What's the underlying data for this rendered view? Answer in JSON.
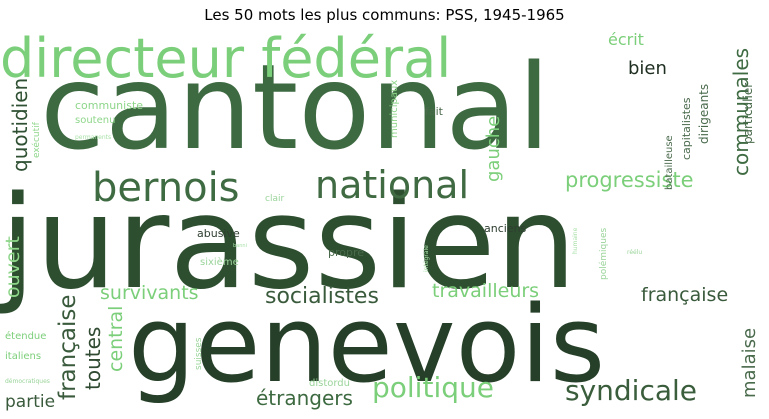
{
  "title": "Les 50 mots les plus communs: PSS, 1945-1965",
  "palette": {
    "dark": "#1f3a22",
    "darkmid": "#2f5a33",
    "mid": "#3f7a45",
    "light": "#7fcf7f",
    "pale": "#a8e0a8"
  },
  "words": [
    {
      "text": "cantonal",
      "color": "#3e6a42"
    },
    {
      "text": "jurassien",
      "color": "#2e4e30"
    },
    {
      "text": "genevois",
      "color": "#263f28"
    },
    {
      "text": "directeur fédéral",
      "color": "#7ccf7a"
    },
    {
      "text": "bernois",
      "color": "#3f6b43"
    },
    {
      "text": "national",
      "color": "#3f6a42"
    },
    {
      "text": "politique",
      "color": "#7ccf7a"
    },
    {
      "text": "syndicale",
      "color": "#3a5d3c"
    },
    {
      "text": "socialistes",
      "color": "#3a5a3c"
    },
    {
      "text": "survivants",
      "color": "#7ccf7a"
    },
    {
      "text": "travailleurs",
      "color": "#7ccf7a"
    },
    {
      "text": "progressiste",
      "color": "#7ccf7a"
    },
    {
      "text": "française",
      "color": "#3a5a3c"
    },
    {
      "text": "étrangers",
      "color": "#3d6a40"
    },
    {
      "text": "ordinaire",
      "color": "#8ed68a"
    },
    {
      "text": "quotidien",
      "color": "#2f5032"
    },
    {
      "text": "gauche",
      "color": "#7ccf7a"
    },
    {
      "text": "communales",
      "color": "#3f6b43"
    },
    {
      "text": "écrit",
      "color": "#7ccf7a"
    },
    {
      "text": "bien",
      "color": "#1e2e20"
    },
    {
      "text": "ouvert",
      "color": "#8ed68a"
    },
    {
      "text": "partie",
      "color": "#3a5a3c"
    },
    {
      "text": "toutes",
      "color": "#2f4a31"
    },
    {
      "text": "central",
      "color": "#7ccf7a"
    },
    {
      "text": "malaise",
      "color": "#4a6a4c"
    },
    {
      "text": "communiste",
      "color": "#8ed68a"
    },
    {
      "text": "soutenu",
      "color": "#8ed68a"
    },
    {
      "text": "exécutif",
      "color": "#8ed68a"
    },
    {
      "text": "fait",
      "color": "#4a6a4c"
    },
    {
      "text": "municipaux",
      "color": "#8ed68a"
    },
    {
      "text": "particulier",
      "color": "#4a6a4c"
    },
    {
      "text": "dirigeants",
      "color": "#4a6a4c"
    },
    {
      "text": "capitalistes",
      "color": "#4a6a4c"
    },
    {
      "text": "batailleuse",
      "color": "#4a6a4c"
    },
    {
      "text": "clair",
      "color": "#9ad49a"
    },
    {
      "text": "abusive",
      "color": "#2e3e30"
    },
    {
      "text": "sixième",
      "color": "#9ad49a"
    },
    {
      "text": "propre",
      "color": "#4a6a4c"
    },
    {
      "text": "anciens",
      "color": "#2e3e30"
    },
    {
      "text": "étendue",
      "color": "#7ccf7a"
    },
    {
      "text": "italiens",
      "color": "#7ccf7a"
    },
    {
      "text": "démocratiques",
      "color": "#9ad49a"
    },
    {
      "text": "suisses",
      "color": "#9ad49a"
    },
    {
      "text": "distordu",
      "color": "#9ad49a"
    },
    {
      "text": "polémiques",
      "color": "#9ad49a"
    },
    {
      "text": "réélu",
      "color": "#9ad49a"
    },
    {
      "text": "intégrale",
      "color": "#a8e0a8"
    },
    {
      "text": "banni",
      "color": "#a8e0a8"
    },
    {
      "text": "permanents",
      "color": "#a8e0a8"
    },
    {
      "text": "humaine",
      "color": "#a8e0a8"
    }
  ]
}
